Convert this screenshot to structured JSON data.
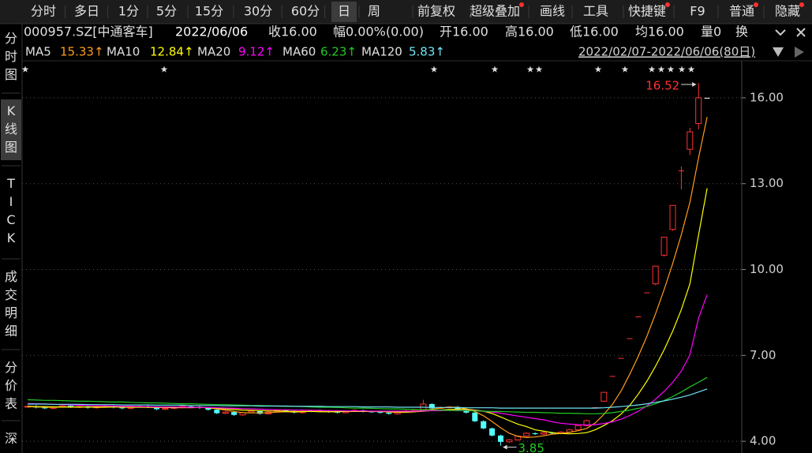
{
  "toolbar": {
    "periods": [
      "分时",
      "多日",
      "1分",
      "5分",
      "15分",
      "30分",
      "60分",
      "日",
      "周"
    ],
    "selected_period": 7,
    "tools": [
      "前复权",
      "超级叠加",
      "画线",
      "工具",
      "快捷键",
      "F9",
      "普通",
      "隐藏"
    ],
    "tool_flags": [
      false,
      true,
      false,
      false,
      true,
      false,
      true,
      true
    ]
  },
  "sidebar": {
    "tabs": [
      "分时图",
      "K线图",
      "TICK",
      "成交明细",
      "分价表",
      "深"
    ],
    "selected": 1
  },
  "info": {
    "code": "000957.SZ[中通客车]",
    "date": "2022/06/06",
    "fields": [
      "收16.00",
      "幅0.00%(0.00)",
      "开16.00",
      "高16.00",
      "低16.00",
      "均16.00",
      "量0",
      "换"
    ]
  },
  "chart_data": {
    "type": "candlestick",
    "range_label": "2022/02/07-2022/06/06(80日)",
    "open": [
      5.2,
      5.22,
      5.18,
      5.15,
      5.2,
      5.24,
      5.19,
      5.21,
      5.17,
      5.2,
      5.23,
      5.18,
      5.15,
      5.2,
      5.22,
      5.19,
      5.12,
      5.15,
      5.18,
      5.22,
      5.2,
      5.16,
      5.1,
      4.98,
      5.02,
      4.92,
      5.0,
      5.05,
      4.96,
      5.02,
      5.08,
      5.05,
      5.0,
      5.04,
      5.08,
      5.06,
      5.03,
      5.0,
      5.05,
      5.08,
      5.04,
      5.02,
      5.0,
      4.96,
      5.02,
      5.06,
      5.1,
      5.3,
      5.15,
      5.18,
      5.2,
      5.1,
      5.0,
      4.7,
      4.45,
      4.2,
      3.98,
      4.05,
      4.18,
      4.28,
      4.25,
      4.3,
      4.28,
      4.32,
      4.4,
      4.55,
      5.19,
      5.4,
      6.28,
      6.91,
      7.6,
      8.36,
      9.2,
      9.5,
      10.5,
      11.4,
      13.46,
      14.2,
      15.1,
      16.0
    ],
    "high": [
      5.25,
      5.26,
      5.21,
      5.23,
      5.28,
      5.27,
      5.24,
      5.24,
      5.23,
      5.27,
      5.26,
      5.21,
      5.23,
      5.25,
      5.25,
      5.22,
      5.18,
      5.21,
      5.25,
      5.26,
      5.23,
      5.19,
      5.13,
      5.05,
      5.06,
      5.03,
      5.08,
      5.08,
      5.05,
      5.11,
      5.11,
      5.08,
      5.07,
      5.11,
      5.11,
      5.09,
      5.06,
      5.08,
      5.11,
      5.11,
      5.07,
      5.05,
      5.03,
      5.05,
      5.09,
      5.13,
      5.45,
      5.33,
      5.21,
      5.23,
      5.23,
      5.13,
      5.03,
      4.73,
      4.48,
      4.23,
      4.08,
      4.21,
      4.31,
      4.31,
      4.33,
      4.33,
      4.35,
      4.43,
      4.58,
      4.75,
      5.19,
      5.71,
      6.28,
      6.91,
      7.6,
      8.36,
      9.2,
      10.12,
      11.13,
      12.24,
      13.6,
      14.95,
      16.52,
      16.0
    ],
    "low": [
      5.17,
      5.15,
      5.12,
      5.12,
      5.17,
      5.16,
      5.16,
      5.14,
      5.14,
      5.17,
      5.15,
      5.12,
      5.12,
      5.17,
      5.16,
      5.09,
      5.09,
      5.12,
      5.15,
      5.17,
      5.13,
      5.07,
      4.95,
      4.95,
      4.89,
      4.89,
      4.97,
      4.93,
      4.93,
      4.99,
      5.02,
      4.97,
      4.97,
      5.01,
      5.03,
      5.0,
      4.97,
      4.97,
      5.02,
      5.01,
      4.99,
      4.97,
      4.93,
      4.93,
      4.99,
      5.03,
      5.07,
      5.12,
      5.12,
      5.15,
      5.07,
      4.97,
      4.67,
      4.42,
      4.17,
      3.85,
      3.95,
      4.02,
      4.15,
      4.22,
      4.22,
      4.25,
      4.25,
      4.29,
      4.37,
      4.52,
      5.19,
      5.38,
      6.28,
      6.91,
      7.6,
      8.36,
      9.2,
      9.45,
      10.45,
      11.35,
      12.8,
      14.0,
      14.9,
      16.0
    ],
    "close": [
      5.22,
      5.18,
      5.15,
      5.2,
      5.24,
      5.19,
      5.21,
      5.17,
      5.2,
      5.23,
      5.18,
      5.15,
      5.2,
      5.22,
      5.19,
      5.12,
      5.15,
      5.18,
      5.22,
      5.2,
      5.16,
      5.1,
      4.98,
      5.02,
      4.92,
      5.0,
      5.05,
      4.96,
      5.02,
      5.08,
      5.05,
      5.0,
      5.04,
      5.08,
      5.06,
      5.03,
      5.0,
      5.05,
      5.08,
      5.04,
      5.02,
      5.0,
      4.96,
      5.02,
      5.06,
      5.1,
      5.3,
      5.15,
      5.18,
      5.2,
      5.1,
      5.0,
      4.7,
      4.45,
      4.2,
      3.98,
      4.05,
      4.18,
      4.28,
      4.25,
      4.3,
      4.28,
      4.32,
      4.4,
      4.55,
      4.72,
      5.19,
      5.71,
      6.28,
      6.91,
      7.6,
      8.36,
      9.2,
      10.12,
      11.13,
      12.24,
      13.46,
      14.81,
      16.0,
      16.0
    ],
    "up_color": "#ff3232",
    "down_color": "#54fcfc",
    "flat_color": "#ffffff",
    "series": [
      {
        "name": "MA5",
        "color": "#ff9c1a",
        "legend_value": "15.33↑",
        "values": [
          5.21,
          5.2,
          5.19,
          5.19,
          5.2,
          5.19,
          5.2,
          5.2,
          5.2,
          5.2,
          5.2,
          5.19,
          5.19,
          5.2,
          5.19,
          5.18,
          5.18,
          5.17,
          5.17,
          5.17,
          5.18,
          5.17,
          5.13,
          5.09,
          5.04,
          5.0,
          4.99,
          4.99,
          4.99,
          5.02,
          5.03,
          5.02,
          5.03,
          5.05,
          5.05,
          5.04,
          5.04,
          5.04,
          5.04,
          5.04,
          5.04,
          5.04,
          5.02,
          5.01,
          5.01,
          5.03,
          5.09,
          5.12,
          5.16,
          5.19,
          5.19,
          5.13,
          5.04,
          4.89,
          4.69,
          4.47,
          4.28,
          4.17,
          4.13,
          4.15,
          4.19,
          4.25,
          4.27,
          4.31,
          4.37,
          4.45,
          4.64,
          4.94,
          5.29,
          5.76,
          6.34,
          6.97,
          7.67,
          8.45,
          9.3,
          10.21,
          11.22,
          12.35,
          13.9,
          15.33
        ]
      },
      {
        "name": "MA10",
        "color": "#ffff00",
        "legend_value": "12.84↑",
        "values": [
          5.22,
          5.21,
          5.21,
          5.2,
          5.2,
          5.2,
          5.2,
          5.2,
          5.19,
          5.19,
          5.2,
          5.2,
          5.19,
          5.19,
          5.19,
          5.19,
          5.19,
          5.18,
          5.18,
          5.18,
          5.18,
          5.17,
          5.15,
          5.13,
          5.11,
          5.09,
          5.08,
          5.07,
          5.06,
          5.06,
          5.05,
          5.04,
          5.04,
          5.04,
          5.03,
          5.03,
          5.03,
          5.04,
          5.04,
          5.04,
          5.04,
          5.04,
          5.04,
          5.03,
          5.03,
          5.03,
          5.05,
          5.07,
          5.09,
          5.11,
          5.12,
          5.12,
          5.09,
          5.05,
          4.97,
          4.85,
          4.72,
          4.6,
          4.51,
          4.4,
          4.35,
          4.3,
          4.27,
          4.26,
          4.27,
          4.3,
          4.4,
          4.55,
          4.72,
          4.95,
          5.25,
          5.65,
          6.1,
          6.62,
          7.2,
          7.85,
          8.6,
          9.5,
          11.2,
          12.84
        ]
      },
      {
        "name": "MA20",
        "color": "#ff00ff",
        "legend_value": "9.12↑",
        "values": [
          5.32,
          5.31,
          5.3,
          5.29,
          5.28,
          5.27,
          5.26,
          5.25,
          5.24,
          5.24,
          5.23,
          5.22,
          5.22,
          5.21,
          5.21,
          5.2,
          5.2,
          5.2,
          5.19,
          5.19,
          5.18,
          5.18,
          5.17,
          5.16,
          5.15,
          5.14,
          5.13,
          5.12,
          5.11,
          5.1,
          5.1,
          5.09,
          5.09,
          5.08,
          5.08,
          5.07,
          5.07,
          5.06,
          5.06,
          5.06,
          5.05,
          5.05,
          5.05,
          5.05,
          5.05,
          5.05,
          5.06,
          5.07,
          5.07,
          5.08,
          5.08,
          5.08,
          5.07,
          5.05,
          5.02,
          4.98,
          4.93,
          4.88,
          4.84,
          4.79,
          4.75,
          4.68,
          4.63,
          4.6,
          4.58,
          4.57,
          4.58,
          4.62,
          4.68,
          4.77,
          4.9,
          5.05,
          5.24,
          5.47,
          5.74,
          6.06,
          6.45,
          7.02,
          8.3,
          9.12
        ]
      },
      {
        "name": "MA60",
        "color": "#22c922",
        "legend_value": "6.23↑",
        "values": [
          5.45,
          5.44,
          5.43,
          5.43,
          5.42,
          5.41,
          5.4,
          5.4,
          5.39,
          5.38,
          5.37,
          5.37,
          5.36,
          5.35,
          5.34,
          5.34,
          5.33,
          5.32,
          5.31,
          5.31,
          5.3,
          5.29,
          5.28,
          5.28,
          5.27,
          5.26,
          5.25,
          5.25,
          5.24,
          5.23,
          5.22,
          5.22,
          5.21,
          5.2,
          5.19,
          5.19,
          5.18,
          5.17,
          5.16,
          5.16,
          5.15,
          5.14,
          5.13,
          5.13,
          5.12,
          5.11,
          5.1,
          5.1,
          5.09,
          5.08,
          5.07,
          5.07,
          5.06,
          5.05,
          5.04,
          5.04,
          5.03,
          5.02,
          5.01,
          5.01,
          5.0,
          4.99,
          4.98,
          4.98,
          4.97,
          4.96,
          4.96,
          4.97,
          5.0,
          5.04,
          5.09,
          5.15,
          5.22,
          5.31,
          5.42,
          5.56,
          5.72,
          5.9,
          6.06,
          6.23
        ]
      },
      {
        "name": "MA120",
        "color": "#6fe3f5",
        "legend_value": "5.83↑",
        "values": [
          5.3,
          5.3,
          5.3,
          5.29,
          5.29,
          5.29,
          5.29,
          5.28,
          5.28,
          5.28,
          5.28,
          5.27,
          5.27,
          5.27,
          5.27,
          5.26,
          5.26,
          5.26,
          5.26,
          5.25,
          5.25,
          5.25,
          5.25,
          5.24,
          5.24,
          5.24,
          5.24,
          5.23,
          5.23,
          5.23,
          5.23,
          5.22,
          5.22,
          5.22,
          5.22,
          5.21,
          5.21,
          5.21,
          5.21,
          5.2,
          5.2,
          5.2,
          5.2,
          5.19,
          5.19,
          5.19,
          5.19,
          5.18,
          5.18,
          5.18,
          5.18,
          5.17,
          5.17,
          5.17,
          5.17,
          5.16,
          5.16,
          5.16,
          5.16,
          5.16,
          5.16,
          5.16,
          5.16,
          5.16,
          5.16,
          5.16,
          5.16,
          5.17,
          5.19,
          5.21,
          5.24,
          5.27,
          5.31,
          5.36,
          5.41,
          5.47,
          5.54,
          5.62,
          5.72,
          5.83
        ]
      }
    ],
    "ylim": [
      3.59,
      17.21
    ],
    "yticks": [
      {
        "value": 4,
        "label": "4.00"
      },
      {
        "value": 7,
        "label": "7.00"
      },
      {
        "value": 10,
        "label": "10.00"
      },
      {
        "value": 13,
        "label": "13.00"
      },
      {
        "value": 16,
        "label": "16.00"
      }
    ],
    "grid": true,
    "annotations": {
      "high": 16.52,
      "low": 3.85
    },
    "high_color": "#ff3232",
    "low_color": "#22c922"
  }
}
